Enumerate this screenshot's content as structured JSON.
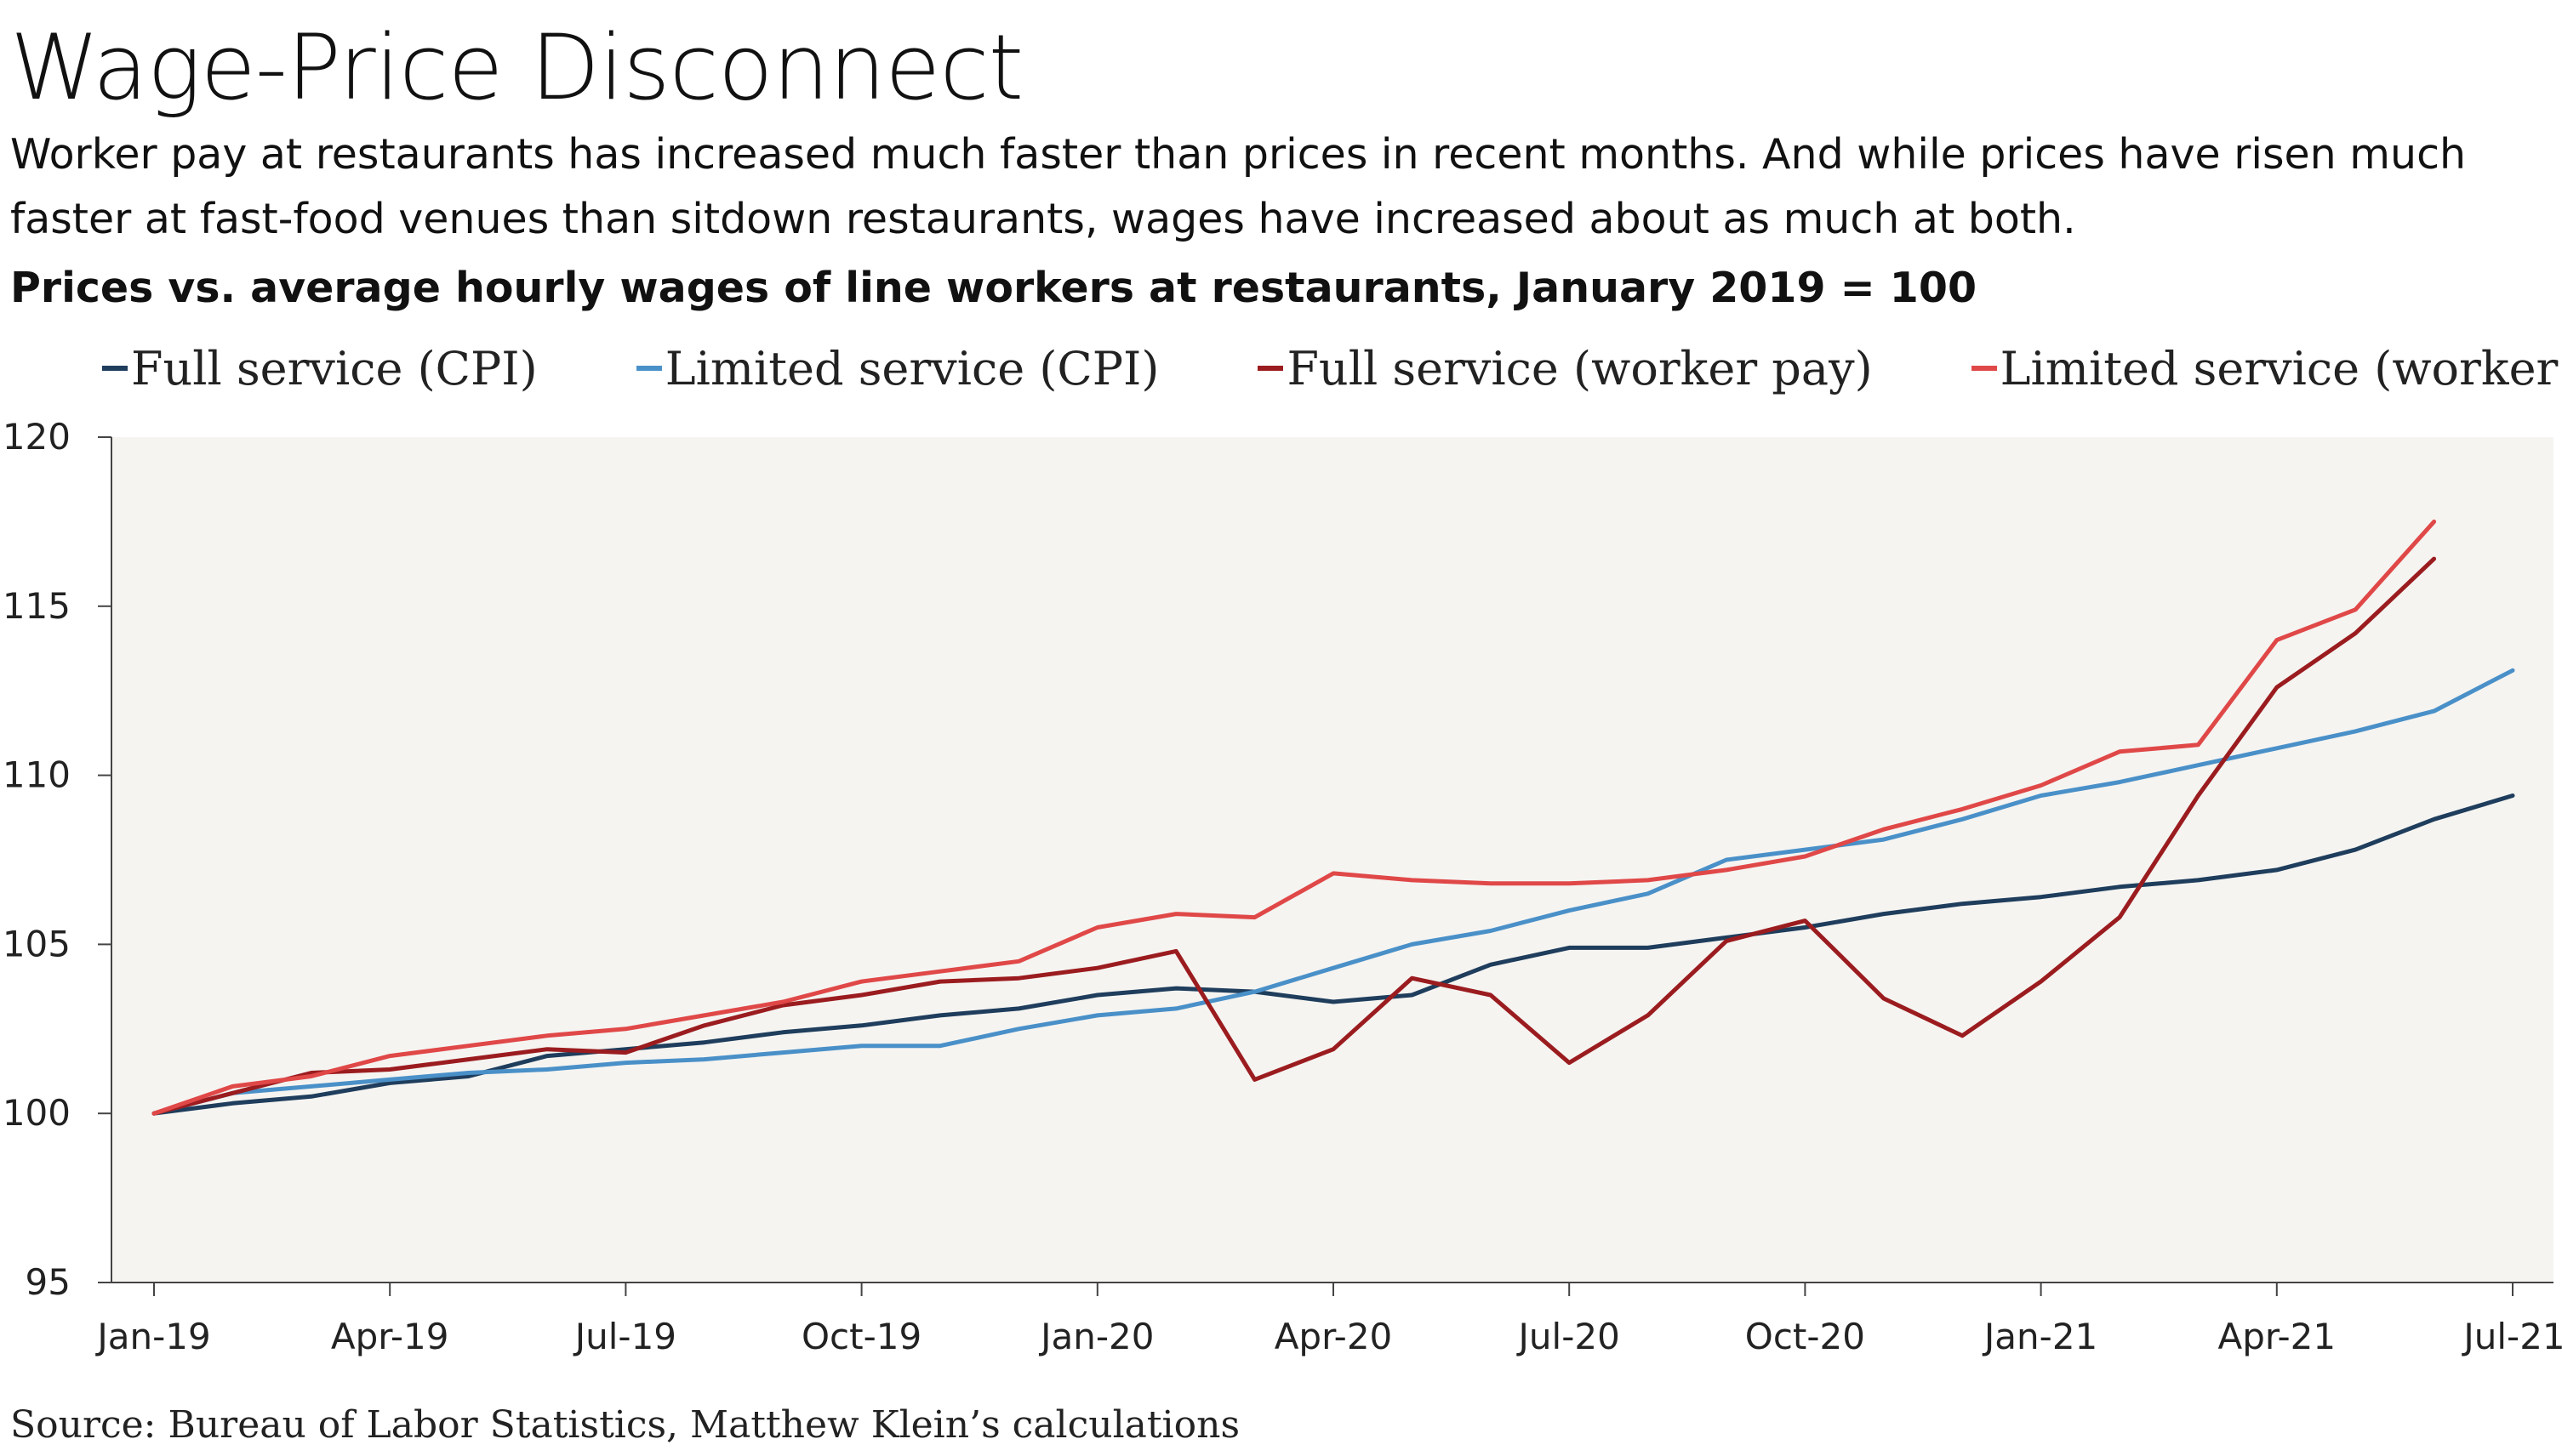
{
  "title": "Wage-Price Disconnect",
  "subtitle": "Worker pay at restaurants has increased much faster than prices in recent months. And while prices have risen much faster at fast-food venues than sitdown restaurants, wages have increased about as much at both.",
  "source": "Source: Bureau of Labor Statistics, Matthew Klein’s calculations",
  "colors": {
    "plot_background": "#f5f4f1",
    "full_cpi": "#1f3d5c",
    "limited_cpi": "#4a90c8",
    "full_pay": "#9b1c1f",
    "limited_pay": "#e04848"
  },
  "chart_data": {
    "type": "line",
    "title": "Prices vs. average hourly wages of line workers at restaurants, January 2019 = 100",
    "xlabel": "",
    "ylabel": "",
    "x": [
      "2019-01",
      "2019-02",
      "2019-03",
      "2019-04",
      "2019-05",
      "2019-06",
      "2019-07",
      "2019-08",
      "2019-09",
      "2019-10",
      "2019-11",
      "2019-12",
      "2020-01",
      "2020-02",
      "2020-03",
      "2020-04",
      "2020-05",
      "2020-06",
      "2020-07",
      "2020-08",
      "2020-09",
      "2020-10",
      "2020-11",
      "2020-12",
      "2021-01",
      "2021-02",
      "2021-03",
      "2021-04",
      "2021-05",
      "2021-06",
      "2021-07"
    ],
    "x_tick_labels": [
      "Jan-19",
      "Apr-19",
      "Jul-19",
      "Oct-19",
      "Jan-20",
      "Apr-20",
      "Jul-20",
      "Oct-20",
      "Jan-21",
      "Apr-21",
      "Jul-21"
    ],
    "ylim": [
      95,
      120
    ],
    "y_ticks": [
      95,
      100,
      105,
      110,
      115,
      120
    ],
    "grid": false,
    "legend_position": "top",
    "series": [
      {
        "name": "Full service (CPI)",
        "color": "#1f3d5c",
        "values": [
          100.0,
          100.3,
          100.5,
          100.9,
          101.1,
          101.7,
          101.9,
          102.1,
          102.4,
          102.6,
          102.9,
          103.1,
          103.5,
          103.7,
          103.6,
          103.3,
          103.5,
          104.4,
          104.9,
          104.9,
          105.2,
          105.5,
          105.9,
          106.2,
          106.4,
          106.7,
          106.9,
          107.2,
          107.8,
          108.7,
          109.4
        ]
      },
      {
        "name": "Limited service (CPI)",
        "color": "#4a90c8",
        "values": [
          100.0,
          100.6,
          100.8,
          101.0,
          101.2,
          101.3,
          101.5,
          101.6,
          101.8,
          102.0,
          102.0,
          102.5,
          102.9,
          103.1,
          103.6,
          104.3,
          105.0,
          105.4,
          106.0,
          106.5,
          107.5,
          107.8,
          108.1,
          108.7,
          109.4,
          109.8,
          110.3,
          110.8,
          111.3,
          111.9,
          113.1
        ]
      },
      {
        "name": "Full service (worker pay)",
        "color": "#9b1c1f",
        "values": [
          100.0,
          100.6,
          101.2,
          101.3,
          101.6,
          101.9,
          101.8,
          102.6,
          103.2,
          103.5,
          103.9,
          104.0,
          104.3,
          104.8,
          101.0,
          101.9,
          104.0,
          103.5,
          101.5,
          102.9,
          105.1,
          105.7,
          103.4,
          102.3,
          103.9,
          105.8,
          109.4,
          112.6,
          114.2,
          116.4,
          null
        ]
      },
      {
        "name": "Limited service (worker pay)",
        "color": "#e04848",
        "values": [
          100.0,
          100.8,
          101.1,
          101.7,
          102.0,
          102.3,
          102.5,
          102.9,
          103.3,
          103.9,
          104.2,
          104.5,
          105.5,
          105.9,
          105.8,
          107.1,
          106.9,
          106.8,
          106.8,
          106.9,
          107.2,
          107.6,
          108.4,
          109.0,
          109.7,
          110.7,
          110.9,
          114.0,
          114.9,
          117.5,
          null
        ]
      }
    ]
  }
}
